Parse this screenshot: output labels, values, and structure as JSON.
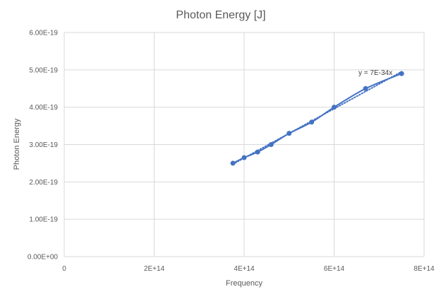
{
  "chart_data": {
    "type": "scatter",
    "title": "Photon Energy [J]",
    "xlabel": "Frequency",
    "ylabel": "Photon Energy",
    "xlim": [
      0,
      800000000000000.0
    ],
    "ylim": [
      0,
      6e-19
    ],
    "x_ticks": [
      "0",
      "2E+14",
      "4E+14",
      "6E+14",
      "8E+14"
    ],
    "y_ticks": [
      "0.00E+00",
      "1.00E-19",
      "2.00E-19",
      "3.00E-19",
      "4.00E-19",
      "5.00E-19",
      "6.00E-19"
    ],
    "grid": true,
    "series": [
      {
        "x": [
          375000000000000.0,
          400000000000000.0,
          430000000000000.0,
          460000000000000.0,
          500000000000000.0,
          550000000000000.0,
          600000000000000.0,
          670000000000000.0,
          750000000000000.0
        ],
        "y": [
          2.5e-19,
          2.65e-19,
          2.8e-19,
          3e-19,
          3.3e-19,
          3.6e-19,
          4e-19,
          4.5e-19,
          4.9e-19
        ],
        "color": "#4472c4",
        "style": "smooth-line-with-markers"
      }
    ],
    "trendline": {
      "type": "linear-through-origin",
      "slope": 6.6e-34,
      "x_range": [
        375000000000000.0,
        750000000000000.0
      ],
      "style": "dotted",
      "color": "#4472c4",
      "equation_label": "y = 7E-34x"
    }
  }
}
